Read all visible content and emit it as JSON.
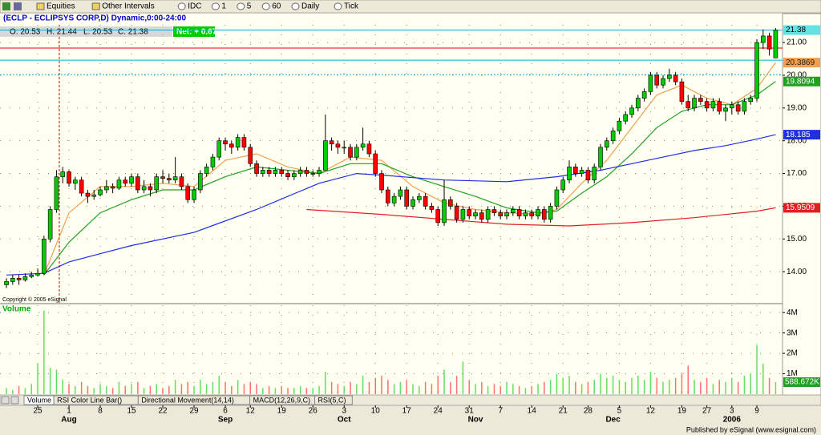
{
  "toolbar": [
    "Equities",
    "Other Intervals",
    "IDC",
    "1",
    "5",
    "60",
    "Daily",
    "Tick"
  ],
  "header": {
    "symbol": "(ECLP - ECLIPSYS CORP,D) Dynamic,0:00-24:00",
    "ohlc": [
      "O: 20.53",
      "H: 21.44",
      "L: 20.53",
      "C: 21.38"
    ],
    "net": "Net: + 0.67"
  },
  "copyright": "Copyright © 2005 eSignal",
  "tabs": [
    "Volume",
    "RSI Color Line Bar()",
    "Directional Movement(14,14)",
    "MACD(12,26,9,C)",
    "RSI(5,C)"
  ],
  "footer": "Published by eSignal (www.esignal.com)",
  "chart_data": [
    {
      "type": "candlestick",
      "grid": true,
      "up_color": "#00cc00",
      "down_color": "#ff0000",
      "xlim": [
        -1.03,
        124.1
      ],
      "ylim": [
        13.05,
        21.54
      ],
      "yticks": [
        {
          "value": 14,
          "label": "14.00"
        },
        {
          "value": 15,
          "label": "15.00"
        },
        {
          "value": 16,
          "label": "16.00"
        },
        {
          "value": 17,
          "label": "17.00"
        },
        {
          "value": 18,
          "label": "18.00"
        },
        {
          "value": 19,
          "label": "19.00"
        },
        {
          "value": 20,
          "label": "20.00"
        },
        {
          "value": 21,
          "label": "21.00"
        }
      ],
      "xticks": [
        {
          "value": 5,
          "label": "25"
        },
        {
          "value": 10,
          "label": "1"
        },
        {
          "value": 15,
          "label": "8"
        },
        {
          "value": 20,
          "label": "15"
        },
        {
          "value": 25,
          "label": "22"
        },
        {
          "value": 30,
          "label": "29"
        },
        {
          "value": 35,
          "label": "6"
        },
        {
          "value": 39,
          "label": "12"
        },
        {
          "value": 44,
          "label": "19"
        },
        {
          "value": 49,
          "label": "26"
        },
        {
          "value": 54,
          "label": "3"
        },
        {
          "value": 59,
          "label": "10"
        },
        {
          "value": 64,
          "label": "17"
        },
        {
          "value": 69,
          "label": "24"
        },
        {
          "value": 74,
          "label": "31"
        },
        {
          "value": 79,
          "label": "7"
        },
        {
          "value": 84,
          "label": "14"
        },
        {
          "value": 89,
          "label": "21"
        },
        {
          "value": 93,
          "label": "28"
        },
        {
          "value": 98,
          "label": "5"
        },
        {
          "value": 103,
          "label": "12"
        },
        {
          "value": 108,
          "label": "19"
        },
        {
          "value": 112,
          "label": "27"
        },
        {
          "value": 116,
          "label": "3"
        },
        {
          "value": 120,
          "label": "9"
        }
      ],
      "months": [
        {
          "value": 10,
          "label": "Aug"
        },
        {
          "value": 35,
          "label": "Sep"
        },
        {
          "value": 54,
          "label": "Oct"
        },
        {
          "value": 75,
          "label": "Nov"
        },
        {
          "value": 97,
          "label": "Dec"
        },
        {
          "value": 116,
          "label": "2006"
        }
      ],
      "hlines": [
        {
          "value": 21.38,
          "color": "#00b0d0"
        },
        {
          "value": 20.83,
          "color": "#e00000"
        },
        {
          "value": 20.46,
          "color": "#00b0d0"
        },
        {
          "value": 20.02,
          "color": "#00b0d0"
        }
      ],
      "candles": [
        [
          13.6,
          13.8,
          13.5,
          13.7
        ],
        [
          13.7,
          13.9,
          13.6,
          13.8
        ],
        [
          13.8,
          13.9,
          13.6,
          13.75
        ],
        [
          13.75,
          13.95,
          13.7,
          13.85
        ],
        [
          13.85,
          14.0,
          13.8,
          13.9
        ],
        [
          13.9,
          14.1,
          13.85,
          13.95
        ],
        [
          13.95,
          15.1,
          13.9,
          15.0
        ],
        [
          15.0,
          16.0,
          14.9,
          15.9
        ],
        [
          15.9,
          17.1,
          15.8,
          16.9
        ],
        [
          16.9,
          17.2,
          16.7,
          17.05
        ],
        [
          17.05,
          17.1,
          16.6,
          16.7
        ],
        [
          16.7,
          16.9,
          16.5,
          16.8
        ],
        [
          16.8,
          16.9,
          16.3,
          16.4
        ],
        [
          16.4,
          16.5,
          16.1,
          16.3
        ],
        [
          16.3,
          16.5,
          16.2,
          16.35
        ],
        [
          16.35,
          16.6,
          16.3,
          16.5
        ],
        [
          16.5,
          16.8,
          16.4,
          16.6
        ],
        [
          16.6,
          16.7,
          16.4,
          16.55
        ],
        [
          16.55,
          16.9,
          16.5,
          16.8
        ],
        [
          16.8,
          16.9,
          16.6,
          16.7
        ],
        [
          16.7,
          17.0,
          16.6,
          16.9
        ],
        [
          16.9,
          17.0,
          16.4,
          16.5
        ],
        [
          16.5,
          16.8,
          16.4,
          16.6
        ],
        [
          16.6,
          16.7,
          16.3,
          16.5
        ],
        [
          16.5,
          17.0,
          16.4,
          16.9
        ],
        [
          16.9,
          17.1,
          16.7,
          16.85
        ],
        [
          16.85,
          17.0,
          16.7,
          16.8
        ],
        [
          16.8,
          17.5,
          16.7,
          16.9
        ],
        [
          16.9,
          17.0,
          16.5,
          16.6
        ],
        [
          16.6,
          16.7,
          16.1,
          16.2
        ],
        [
          16.2,
          16.6,
          16.1,
          16.5
        ],
        [
          16.5,
          17.1,
          16.4,
          17.0
        ],
        [
          17.0,
          17.3,
          16.9,
          17.2
        ],
        [
          17.2,
          17.6,
          17.1,
          17.5
        ],
        [
          17.5,
          18.1,
          17.4,
          18.0
        ],
        [
          18.0,
          18.1,
          17.7,
          17.9
        ],
        [
          17.9,
          18.0,
          17.6,
          17.8
        ],
        [
          17.8,
          18.2,
          17.7,
          18.1
        ],
        [
          18.1,
          18.2,
          17.7,
          17.8
        ],
        [
          17.8,
          17.9,
          17.2,
          17.3
        ],
        [
          17.3,
          17.4,
          16.9,
          17.0
        ],
        [
          17.0,
          17.2,
          16.9,
          17.1
        ],
        [
          17.1,
          17.2,
          16.9,
          17.0
        ],
        [
          17.0,
          17.2,
          16.9,
          17.1
        ],
        [
          17.1,
          17.2,
          16.9,
          17.0
        ],
        [
          17.0,
          17.1,
          16.8,
          16.9
        ],
        [
          16.9,
          17.1,
          16.8,
          17.0
        ],
        [
          17.0,
          17.2,
          16.9,
          17.1
        ],
        [
          17.1,
          17.2,
          16.9,
          17.0
        ],
        [
          17.0,
          17.1,
          16.9,
          17.0
        ],
        [
          17.0,
          17.2,
          16.9,
          17.1
        ],
        [
          17.1,
          18.8,
          17.1,
          18.0
        ],
        [
          18.0,
          18.1,
          17.7,
          17.9
        ],
        [
          17.9,
          18.0,
          17.6,
          17.8
        ],
        [
          17.8,
          18.0,
          17.6,
          17.8
        ],
        [
          17.8,
          17.9,
          17.4,
          17.5
        ],
        [
          17.5,
          17.9,
          17.4,
          17.8
        ],
        [
          17.8,
          18.4,
          17.7,
          17.9
        ],
        [
          17.9,
          18.0,
          17.5,
          17.6
        ],
        [
          17.6,
          17.7,
          16.9,
          17.0
        ],
        [
          17.0,
          17.1,
          16.4,
          16.5
        ],
        [
          16.5,
          16.6,
          16.0,
          16.1
        ],
        [
          16.1,
          16.4,
          16.0,
          16.3
        ],
        [
          16.3,
          16.6,
          16.2,
          16.5
        ],
        [
          16.5,
          16.6,
          15.9,
          16.0
        ],
        [
          16.0,
          16.3,
          15.9,
          16.2
        ],
        [
          16.2,
          16.4,
          16.1,
          16.3
        ],
        [
          16.3,
          16.4,
          15.9,
          16.0
        ],
        [
          16.0,
          16.1,
          15.8,
          15.9
        ],
        [
          15.9,
          16.0,
          15.4,
          15.5
        ],
        [
          15.5,
          16.8,
          15.4,
          16.2
        ],
        [
          16.2,
          16.3,
          15.9,
          16.0
        ],
        [
          16.0,
          16.1,
          15.5,
          15.6
        ],
        [
          15.6,
          16.0,
          15.5,
          15.9
        ],
        [
          15.9,
          16.0,
          15.6,
          15.7
        ],
        [
          15.7,
          15.9,
          15.6,
          15.8
        ],
        [
          15.8,
          15.9,
          15.5,
          15.6
        ],
        [
          15.6,
          16.0,
          15.5,
          15.9
        ],
        [
          15.9,
          16.0,
          15.7,
          15.8
        ],
        [
          15.8,
          15.9,
          15.6,
          15.7
        ],
        [
          15.7,
          15.9,
          15.6,
          15.8
        ],
        [
          15.8,
          16.0,
          15.7,
          15.9
        ],
        [
          15.9,
          16.0,
          15.6,
          15.7
        ],
        [
          15.7,
          15.9,
          15.6,
          15.8
        ],
        [
          15.8,
          15.9,
          15.6,
          15.7
        ],
        [
          15.7,
          16.0,
          15.6,
          15.9
        ],
        [
          15.9,
          16.0,
          15.5,
          15.6
        ],
        [
          15.6,
          16.1,
          15.5,
          16.0
        ],
        [
          16.0,
          16.6,
          15.9,
          16.5
        ],
        [
          16.5,
          16.9,
          16.4,
          16.8
        ],
        [
          16.8,
          17.4,
          16.7,
          17.2
        ],
        [
          17.2,
          17.3,
          16.9,
          17.0
        ],
        [
          17.0,
          17.2,
          16.9,
          17.1
        ],
        [
          17.1,
          17.2,
          16.7,
          16.8
        ],
        [
          16.8,
          17.3,
          16.7,
          17.2
        ],
        [
          17.2,
          17.9,
          17.1,
          17.8
        ],
        [
          17.8,
          18.1,
          17.7,
          18.0
        ],
        [
          18.0,
          18.4,
          17.9,
          18.3
        ],
        [
          18.3,
          18.7,
          18.2,
          18.6
        ],
        [
          18.6,
          18.9,
          18.5,
          18.8
        ],
        [
          18.8,
          19.1,
          18.7,
          19.0
        ],
        [
          19.0,
          19.4,
          18.9,
          19.3
        ],
        [
          19.3,
          19.6,
          19.2,
          19.5
        ],
        [
          19.5,
          20.1,
          19.4,
          20.0
        ],
        [
          20.0,
          20.1,
          19.6,
          19.7
        ],
        [
          19.7,
          20.0,
          19.6,
          19.9
        ],
        [
          19.9,
          20.2,
          19.8,
          20.0
        ],
        [
          20.0,
          20.1,
          19.7,
          19.8
        ],
        [
          19.8,
          19.9,
          19.1,
          19.2
        ],
        [
          19.2,
          19.4,
          18.9,
          19.0
        ],
        [
          19.0,
          19.4,
          18.9,
          19.3
        ],
        [
          19.3,
          19.4,
          19.1,
          19.2
        ],
        [
          19.2,
          19.3,
          18.9,
          19.0
        ],
        [
          19.0,
          19.3,
          18.9,
          19.2
        ],
        [
          19.2,
          19.3,
          18.8,
          18.9
        ],
        [
          18.9,
          19.1,
          18.6,
          19.0
        ],
        [
          19.0,
          19.2,
          18.8,
          19.1
        ],
        [
          19.1,
          19.2,
          18.8,
          18.9
        ],
        [
          18.9,
          19.3,
          18.8,
          19.2
        ],
        [
          19.2,
          19.4,
          19.1,
          19.3
        ],
        [
          19.3,
          21.1,
          19.2,
          21.0
        ],
        [
          21.0,
          21.4,
          20.8,
          21.2
        ],
        [
          21.2,
          21.3,
          20.6,
          20.8
        ],
        [
          20.53,
          21.44,
          20.53,
          21.38
        ]
      ],
      "lines": [
        {
          "color": "#f0a050",
          "label_color": "#f0a050",
          "x": [
            6,
            10,
            15,
            20,
            25,
            30,
            35,
            40,
            45,
            50,
            55,
            60,
            65,
            70,
            75,
            80,
            85,
            88,
            92,
            96,
            100,
            104,
            108,
            112,
            116,
            120,
            123
          ],
          "values": [
            13.9,
            15.8,
            16.6,
            16.6,
            16.7,
            16.6,
            17.4,
            17.6,
            17.2,
            17.0,
            17.5,
            17.4,
            16.6,
            16.1,
            15.9,
            15.8,
            15.75,
            15.9,
            16.7,
            17.4,
            18.4,
            19.4,
            19.7,
            19.3,
            19.1,
            19.6,
            20.3869
          ]
        },
        {
          "color": "#22a022",
          "label_color": "#22a022",
          "x": [
            6,
            10,
            15,
            20,
            25,
            30,
            35,
            40,
            45,
            50,
            55,
            60,
            65,
            70,
            75,
            80,
            85,
            88,
            92,
            96,
            100,
            104,
            108,
            112,
            116,
            120,
            123
          ],
          "values": [
            13.9,
            14.9,
            15.8,
            16.2,
            16.5,
            16.5,
            16.9,
            17.2,
            17.1,
            17.0,
            17.3,
            17.3,
            16.9,
            16.6,
            16.3,
            15.95,
            15.8,
            15.85,
            16.4,
            16.9,
            17.6,
            18.4,
            18.9,
            19.1,
            19.1,
            19.4,
            19.8094
          ]
        },
        {
          "color": "#2030e0",
          "label_color": "#2030e0",
          "x": [
            0,
            6,
            10,
            20,
            30,
            40,
            50,
            56,
            60,
            70,
            80,
            88,
            95,
            100,
            105,
            110,
            115,
            120,
            123
          ],
          "values": [
            13.9,
            13.95,
            14.3,
            14.8,
            15.2,
            15.9,
            16.7,
            17.0,
            16.95,
            16.8,
            16.75,
            16.9,
            17.1,
            17.3,
            17.5,
            17.7,
            17.85,
            18.05,
            18.185
          ]
        },
        {
          "color": "#e02020",
          "label_color": "#e02020",
          "x": [
            48,
            60,
            70,
            80,
            90,
            100,
            110,
            120,
            123
          ],
          "values": [
            15.9,
            15.75,
            15.6,
            15.45,
            15.4,
            15.5,
            15.65,
            15.85,
            15.9509
          ]
        }
      ]
    },
    {
      "type": "volume",
      "title": "Volume",
      "ylim": [
        0,
        4.4
      ],
      "grid": true,
      "yticks": [
        {
          "value": 1,
          "label": "1M"
        },
        {
          "value": 2,
          "label": "2M"
        },
        {
          "value": 3,
          "label": "3M"
        },
        {
          "value": 4,
          "label": "4M"
        }
      ],
      "up_color": "#66dd66",
      "down_color": "#ff7070",
      "last_value_label": "588.672K",
      "values": [
        0.3,
        0.2,
        0.4,
        0.3,
        0.5,
        1.5,
        4.1,
        1.3,
        1.2,
        0.7,
        0.5,
        0.4,
        0.6,
        0.4,
        0.3,
        0.5,
        0.4,
        0.3,
        0.6,
        0.4,
        0.5,
        0.6,
        0.3,
        0.4,
        0.5,
        0.3,
        0.4,
        0.7,
        0.5,
        0.6,
        0.4,
        0.7,
        0.5,
        0.6,
        0.9,
        0.6,
        0.4,
        0.7,
        0.5,
        0.6,
        0.5,
        0.3,
        0.4,
        0.3,
        0.4,
        0.3,
        0.3,
        0.4,
        0.3,
        0.3,
        0.4,
        1.1,
        0.6,
        0.5,
        0.4,
        0.6,
        0.5,
        0.9,
        0.6,
        0.8,
        0.9,
        0.7,
        0.5,
        0.6,
        0.7,
        0.5,
        0.4,
        0.6,
        0.5,
        0.9,
        1.2,
        0.6,
        0.9,
        1.6,
        0.7,
        0.5,
        0.6,
        0.4,
        0.5,
        0.4,
        0.6,
        0.5,
        0.4,
        0.3,
        0.4,
        0.5,
        0.6,
        0.7,
        1.0,
        0.8,
        0.9,
        0.6,
        0.5,
        0.6,
        0.7,
        1.0,
        0.8,
        0.9,
        0.7,
        0.6,
        0.8,
        0.9,
        0.7,
        1.1,
        0.8,
        0.6,
        0.7,
        0.8,
        1.0,
        1.4,
        0.7,
        0.6,
        0.8,
        0.5,
        0.7,
        0.6,
        0.8,
        0.6,
        0.9,
        1.0,
        2.4,
        1.5,
        0.8,
        0.588672
      ]
    }
  ]
}
